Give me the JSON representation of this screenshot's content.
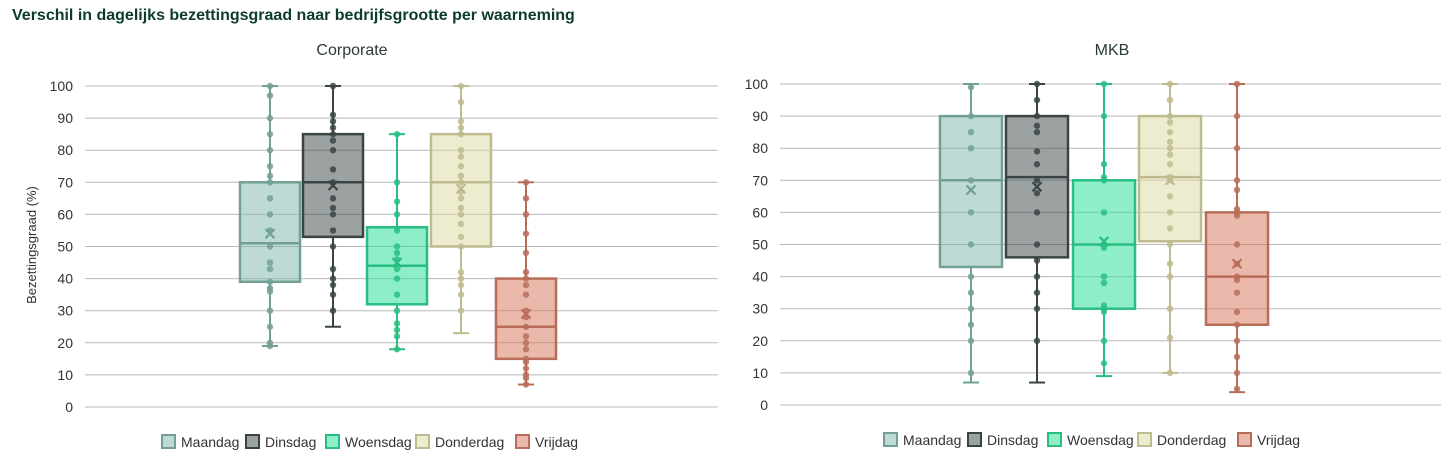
{
  "title": "Verschil in dagelijks bezettingsgraad naar bedrijfsgrootte per waarneming",
  "chart_data": [
    {
      "type": "box",
      "title": "Corporate",
      "ylabel": "Bezettingsgraad (%)",
      "ylim": [
        0,
        100
      ],
      "yticks": [
        0,
        10,
        20,
        30,
        40,
        50,
        60,
        70,
        80,
        90,
        100
      ],
      "grid": true,
      "legend_position": "bottom",
      "series": [
        {
          "name": "Maandag",
          "color": "#86bcb0",
          "min": 19,
          "q1": 39,
          "median": 51,
          "q3": 70,
          "max": 100,
          "mean": 54,
          "points": [
            19,
            20,
            25,
            30,
            36,
            37,
            39,
            43,
            45,
            50,
            55,
            60,
            65,
            70,
            72,
            75,
            80,
            85,
            90,
            97,
            100
          ]
        },
        {
          "name": "Dinsdag",
          "color": "#4a5555",
          "min": 25,
          "q1": 53,
          "median": 70,
          "q3": 85,
          "max": 100,
          "mean": 69,
          "points": [
            30,
            35,
            38,
            40,
            43,
            50,
            55,
            60,
            62,
            65,
            70,
            74,
            80,
            83,
            85,
            87,
            89,
            91,
            100
          ]
        },
        {
          "name": "Woensdag",
          "color": "#2fe09a",
          "min": 18,
          "q1": 32,
          "median": 44,
          "q3": 56,
          "max": 85,
          "mean": 45,
          "points": [
            18,
            22,
            24,
            26,
            30,
            35,
            40,
            43,
            46,
            48,
            50,
            55,
            60,
            64,
            70,
            85
          ]
        },
        {
          "name": "Donderdag",
          "color": "#e0dca8",
          "min": 23,
          "q1": 50,
          "median": 70,
          "q3": 85,
          "max": 100,
          "mean": 68,
          "points": [
            30,
            35,
            38,
            40,
            42,
            50,
            53,
            57,
            60,
            62,
            65,
            67,
            70,
            72,
            75,
            78,
            80,
            85,
            87,
            89,
            95,
            100
          ]
        },
        {
          "name": "Vrijdag",
          "color": "#d98068",
          "min": 7,
          "q1": 15,
          "median": 25,
          "q3": 40,
          "max": 70,
          "mean": 29,
          "points": [
            7,
            9,
            10,
            12,
            14,
            15,
            18,
            20,
            22,
            25,
            28,
            30,
            35,
            38,
            40,
            42,
            48,
            54,
            60,
            65,
            70
          ]
        }
      ]
    },
    {
      "type": "box",
      "title": "MKB",
      "ylabel": "",
      "ylim": [
        0,
        100
      ],
      "yticks": [
        0,
        10,
        20,
        30,
        40,
        50,
        60,
        70,
        80,
        90,
        100
      ],
      "grid": true,
      "legend_position": "bottom",
      "series": [
        {
          "name": "Maandag",
          "color": "#86bcb0",
          "min": 7,
          "q1": 43,
          "median": 70,
          "q3": 90,
          "max": 100,
          "mean": 67,
          "points": [
            10,
            20,
            25,
            30,
            35,
            40,
            50,
            60,
            70,
            80,
            85,
            90,
            99
          ]
        },
        {
          "name": "Dinsdag",
          "color": "#4a5555",
          "min": 7,
          "q1": 46,
          "median": 71,
          "q3": 90,
          "max": 100,
          "mean": 68,
          "points": [
            20,
            30,
            35,
            40,
            45,
            50,
            60,
            66,
            70,
            75,
            79,
            85,
            87,
            90,
            95,
            100
          ]
        },
        {
          "name": "Woensdag",
          "color": "#2fe09a",
          "min": 9,
          "q1": 30,
          "median": 50,
          "q3": 70,
          "max": 100,
          "mean": 51,
          "points": [
            13,
            20,
            29,
            30,
            31,
            38,
            40,
            49,
            50,
            60,
            70,
            71,
            75,
            90,
            100
          ]
        },
        {
          "name": "Donderdag",
          "color": "#e0dca8",
          "min": 10,
          "q1": 51,
          "median": 71,
          "q3": 90,
          "max": 100,
          "mean": 70,
          "points": [
            10,
            21,
            30,
            40,
            44,
            50,
            55,
            60,
            65,
            70,
            71,
            75,
            78,
            80,
            82,
            85,
            88,
            90,
            95,
            100
          ]
        },
        {
          "name": "Vrijdag",
          "color": "#d98068",
          "min": 4,
          "q1": 25,
          "median": 40,
          "q3": 60,
          "max": 100,
          "mean": 44,
          "points": [
            5,
            10,
            15,
            20,
            25,
            29,
            35,
            39,
            40,
            44,
            50,
            59,
            60,
            61,
            67,
            70,
            80,
            90,
            100
          ]
        }
      ]
    }
  ]
}
